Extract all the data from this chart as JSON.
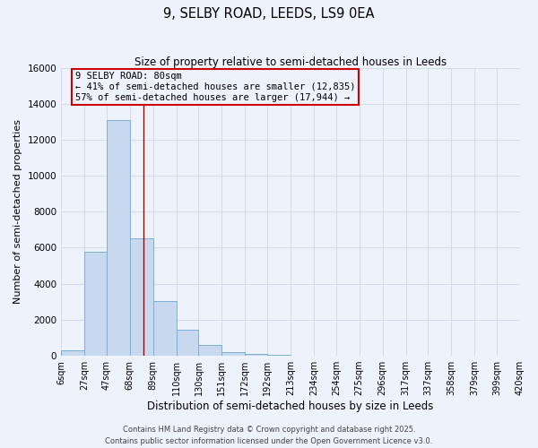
{
  "title": "9, SELBY ROAD, LEEDS, LS9 0EA",
  "subtitle": "Size of property relative to semi-detached houses in Leeds",
  "xlabel": "Distribution of semi-detached houses by size in Leeds",
  "ylabel": "Number of semi-detached properties",
  "bar_edges": [
    6,
    27,
    47,
    68,
    89,
    110,
    130,
    151,
    172,
    192,
    213,
    234,
    254,
    275,
    296,
    317,
    337,
    358,
    379,
    399,
    420
  ],
  "bar_heights": [
    300,
    5800,
    13100,
    6500,
    3050,
    1450,
    600,
    200,
    100,
    50,
    20,
    0,
    0,
    0,
    0,
    0,
    0,
    0,
    0,
    0
  ],
  "bar_color": "#c8d9ef",
  "bar_edge_color": "#7bafd4",
  "property_size": 80,
  "property_label": "9 SELBY ROAD: 80sqm",
  "annotation_line1": "← 41% of semi-detached houses are smaller (12,835)",
  "annotation_line2": "57% of semi-detached houses are larger (17,944) →",
  "vline_color": "#aa0000",
  "box_edge_color": "#cc0000",
  "ylim": [
    0,
    16000
  ],
  "yticks": [
    0,
    2000,
    4000,
    6000,
    8000,
    10000,
    12000,
    14000,
    16000
  ],
  "tick_labels": [
    "6sqm",
    "27sqm",
    "47sqm",
    "68sqm",
    "89sqm",
    "110sqm",
    "130sqm",
    "151sqm",
    "172sqm",
    "192sqm",
    "213sqm",
    "234sqm",
    "254sqm",
    "275sqm",
    "296sqm",
    "317sqm",
    "337sqm",
    "358sqm",
    "379sqm",
    "399sqm",
    "420sqm"
  ],
  "bg_color": "#eef2fb",
  "grid_color": "#d0d8e8",
  "footnote1": "Contains HM Land Registry data © Crown copyright and database right 2025.",
  "footnote2": "Contains public sector information licensed under the Open Government Licence v3.0."
}
